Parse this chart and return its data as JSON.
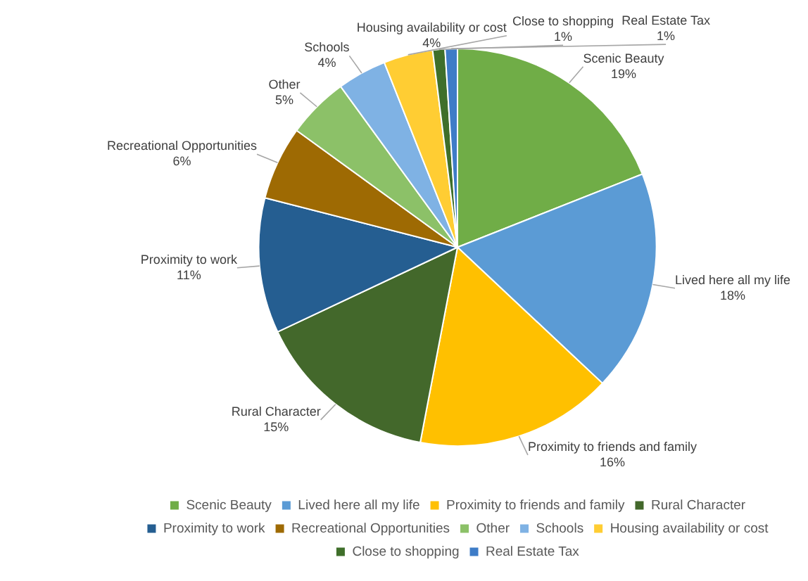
{
  "chart_data": {
    "type": "pie",
    "categories": [
      "Scenic Beauty",
      "Lived here all my life",
      "Proximity to friends and family",
      "Rural Character",
      "Proximity to work",
      "Recreational Opportunities",
      "Other",
      "Schools",
      "Housing availability or cost",
      "Close to shopping",
      "Real Estate Tax"
    ],
    "values": [
      19,
      18,
      16,
      15,
      11,
      6,
      5,
      4,
      4,
      1,
      1
    ],
    "colors": [
      "#70ad47",
      "#5b9bd5",
      "#ffc000",
      "#43682b",
      "#255e91",
      "#9e6a03",
      "#8cc168",
      "#7fb2e4",
      "#ffcd33",
      "#3f6f2a",
      "#3e7cc7"
    ],
    "value_labels": [
      "19%",
      "18%",
      "16%",
      "15%",
      "11%",
      "6%",
      "5%",
      "4%",
      "4%",
      "1%",
      "1%"
    ],
    "legend": "bottom"
  }
}
